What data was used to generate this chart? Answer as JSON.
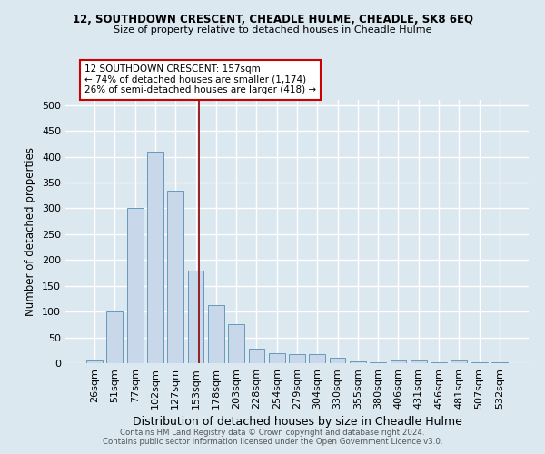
{
  "title1": "12, SOUTHDOWN CRESCENT, CHEADLE HULME, CHEADLE, SK8 6EQ",
  "title2": "Size of property relative to detached houses in Cheadle Hulme",
  "xlabel": "Distribution of detached houses by size in Cheadle Hulme",
  "ylabel": "Number of detached properties",
  "categories": [
    "26sqm",
    "51sqm",
    "77sqm",
    "102sqm",
    "127sqm",
    "153sqm",
    "178sqm",
    "203sqm",
    "228sqm",
    "254sqm",
    "279sqm",
    "304sqm",
    "330sqm",
    "355sqm",
    "380sqm",
    "406sqm",
    "431sqm",
    "456sqm",
    "481sqm",
    "507sqm",
    "532sqm"
  ],
  "values": [
    5,
    100,
    300,
    410,
    335,
    180,
    112,
    75,
    28,
    20,
    18,
    18,
    10,
    4,
    2,
    5,
    5,
    1,
    5,
    1,
    2
  ],
  "bar_color": "#c8d8ea",
  "bar_edge_color": "#6699bb",
  "bar_width": 0.8,
  "vline_color": "#8b0000",
  "vline_pos": 5.16,
  "ylim": [
    0,
    510
  ],
  "yticks": [
    0,
    50,
    100,
    150,
    200,
    250,
    300,
    350,
    400,
    450,
    500
  ],
  "annotation_lines": [
    "12 SOUTHDOWN CRESCENT: 157sqm",
    "← 74% of detached houses are smaller (1,174)",
    "26% of semi-detached houses are larger (418) →"
  ],
  "annotation_box_color": "#ffffff",
  "annotation_box_edge": "#cc0000",
  "footer1": "Contains HM Land Registry data © Crown copyright and database right 2024.",
  "footer2": "Contains public sector information licensed under the Open Government Licence v3.0.",
  "background_color": "#dce8f0",
  "grid_color": "#ffffff"
}
